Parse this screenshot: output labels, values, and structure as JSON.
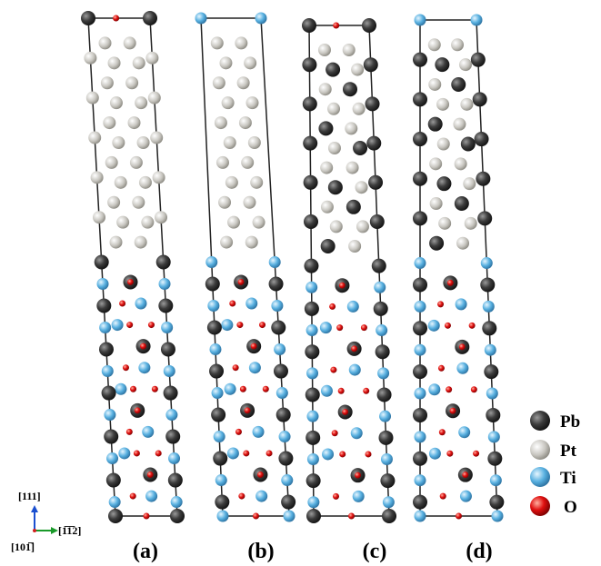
{
  "panels": [
    {
      "label": "(a)"
    },
    {
      "label": "(b)"
    },
    {
      "label": "(c)"
    },
    {
      "label": "(d)"
    }
  ],
  "legend": [
    {
      "label": "Pb"
    },
    {
      "label": "Pt"
    },
    {
      "label": "Ti"
    },
    {
      "label": "O"
    }
  ],
  "axes": {
    "vertical": "[111]",
    "horizontal": "[1̅1̅2]",
    "out_of_plane": "[101̅]"
  }
}
